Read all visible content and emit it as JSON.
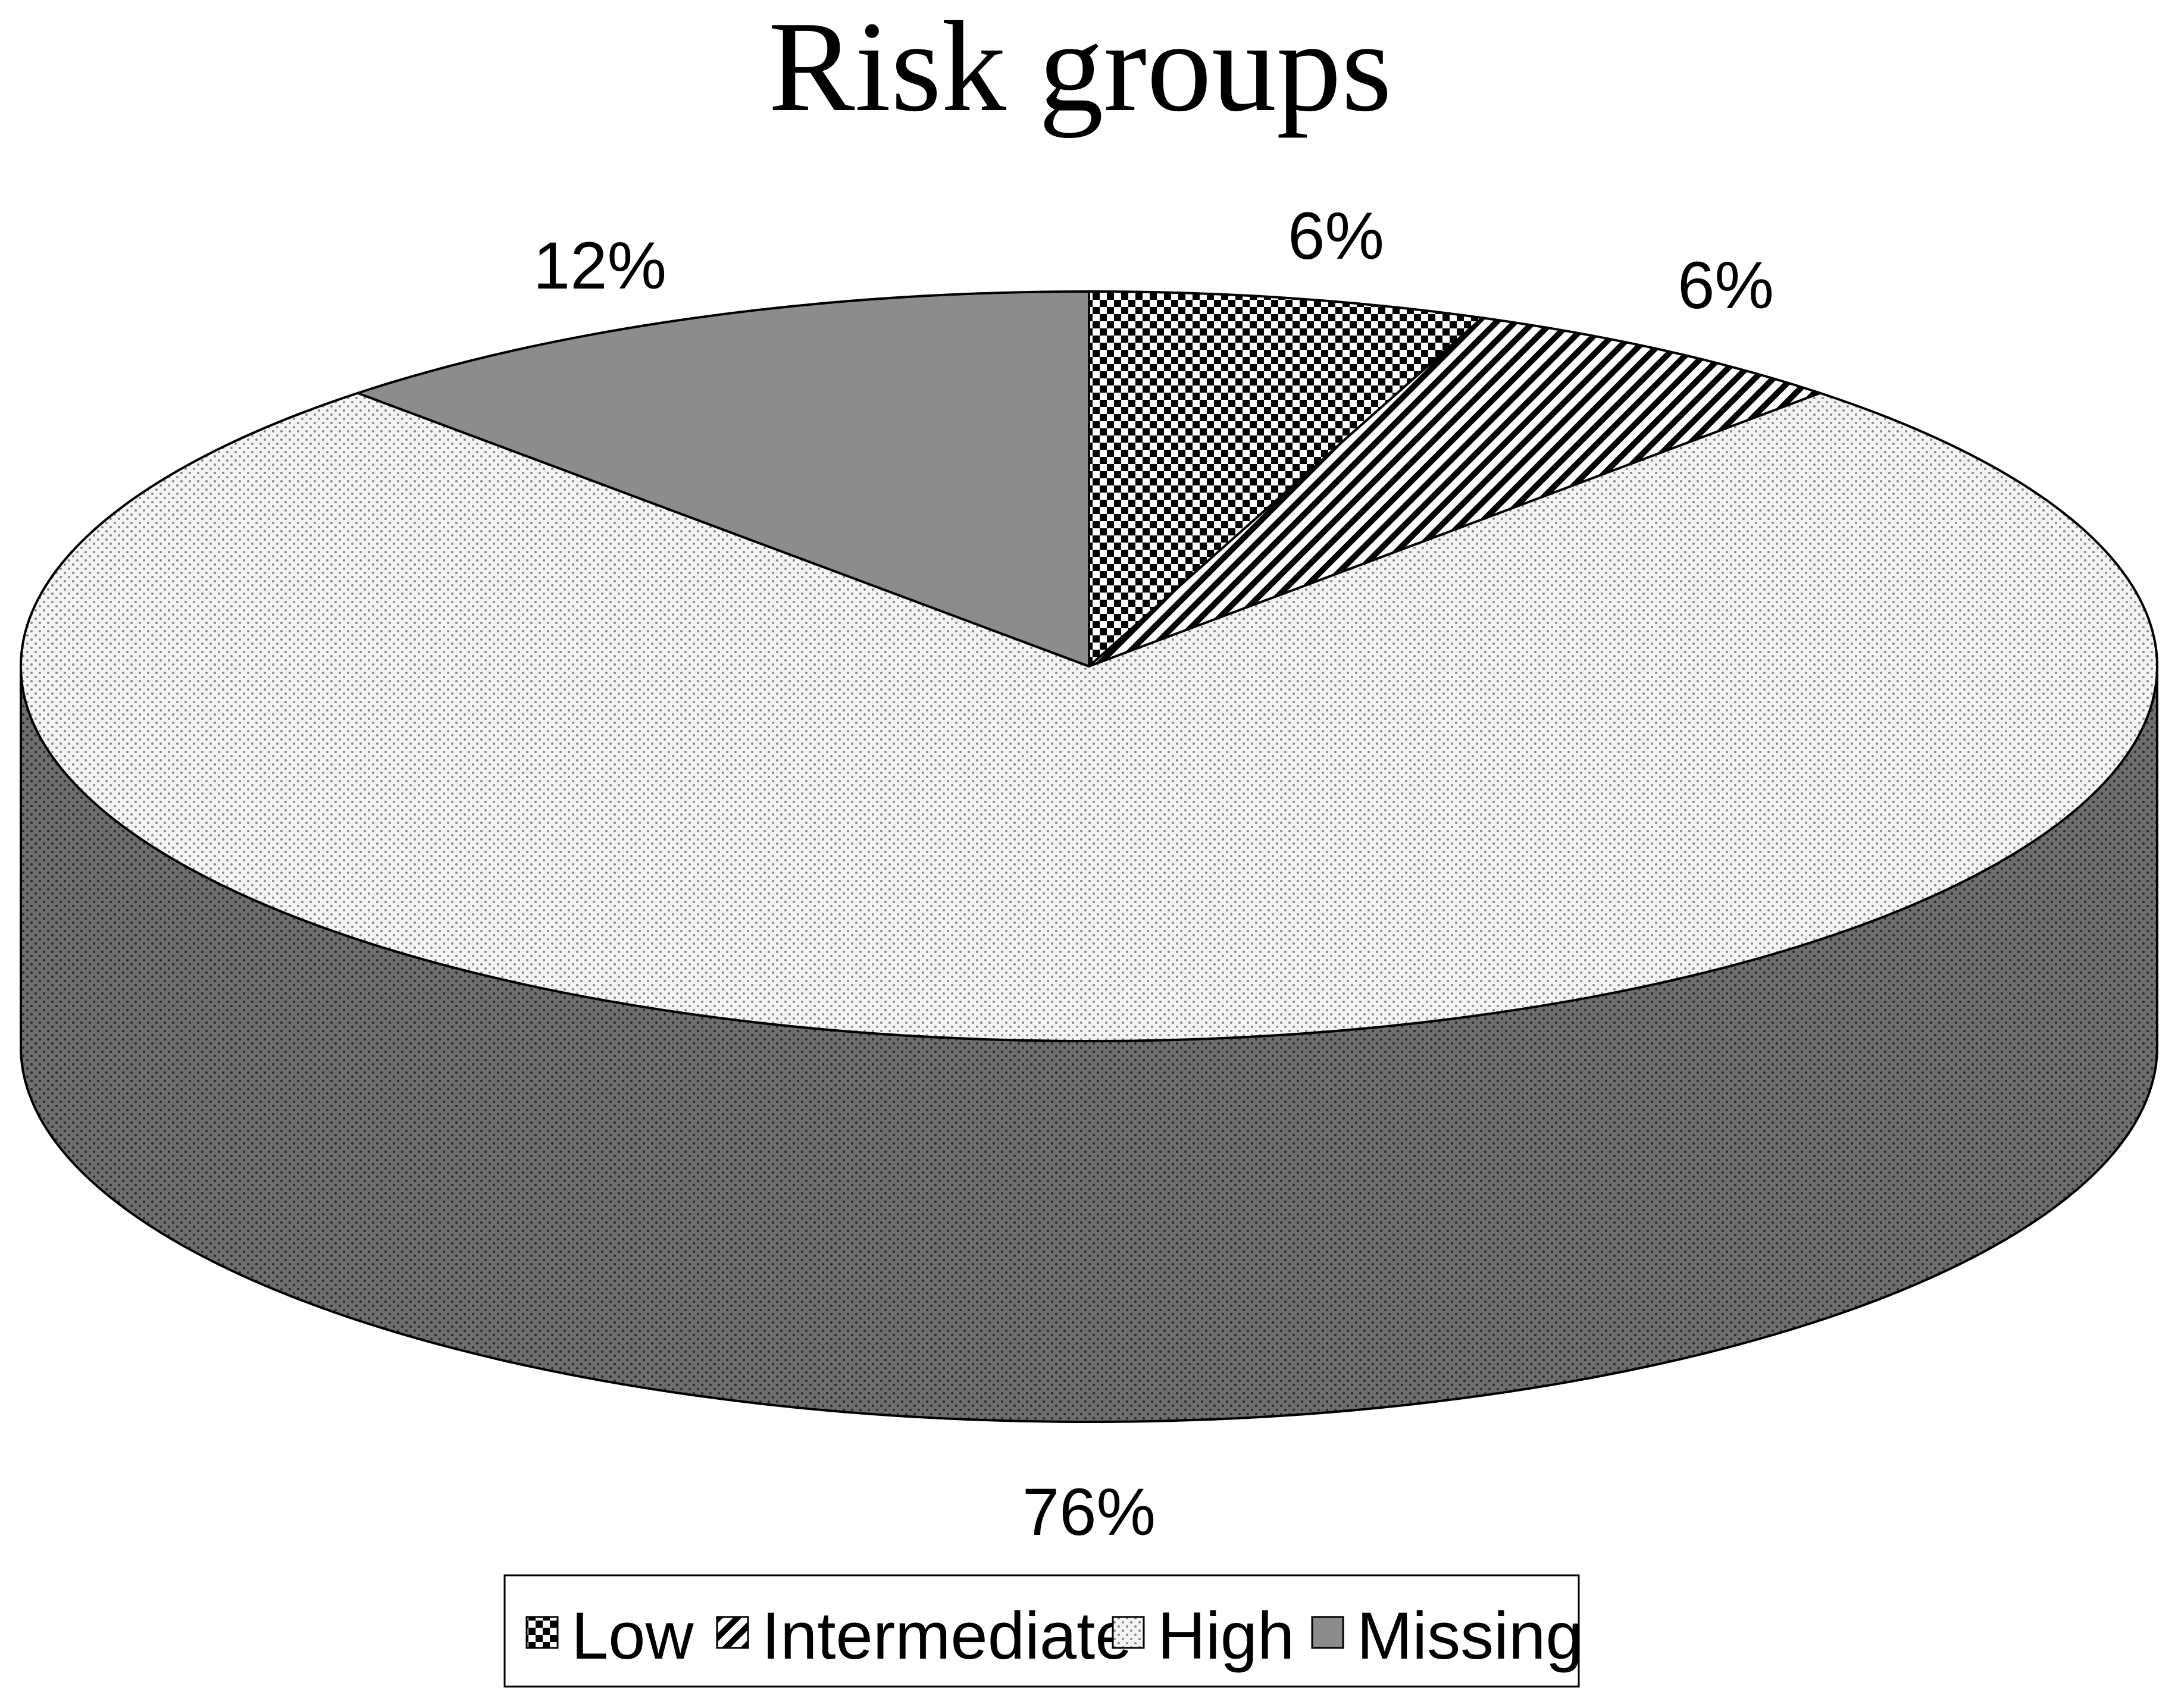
{
  "chart_data": {
    "type": "pie",
    "title": "Risk groups",
    "three_d": true,
    "start_angle_deg": 90,
    "direction": "clockwise",
    "slices": [
      {
        "name": "Low",
        "value": 6,
        "label": "6%",
        "pattern": "checker"
      },
      {
        "name": "Intermediate",
        "value": 6,
        "label": "6%",
        "pattern": "diagonal"
      },
      {
        "name": "High",
        "value": 76,
        "label": "76%",
        "pattern": "dots"
      },
      {
        "name": "Missing",
        "value": 12,
        "label": "12%",
        "pattern": "solid-gray"
      }
    ],
    "legend": {
      "position": "bottom",
      "entries": [
        "Low",
        "Intermediate",
        "High",
        "Missing"
      ]
    }
  },
  "colors": {
    "missing_fill": "#8c8c8c",
    "high_top_fill": "#f4f4f4",
    "high_side_fill": "#707070",
    "outline": "#000000"
  }
}
